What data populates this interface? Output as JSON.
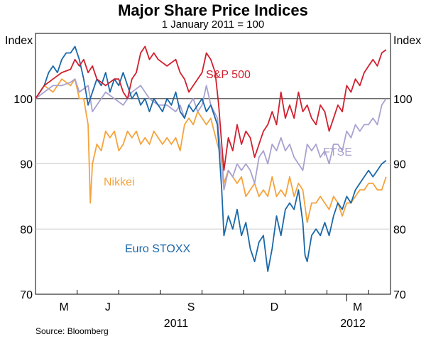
{
  "chart_data": {
    "type": "line",
    "title": "Major Share Price Indices",
    "subtitle": "1 January 2011 = 100",
    "ylabel_left": "Index",
    "ylabel_right": "Index",
    "ylim": [
      70,
      110
    ],
    "yticks": [
      70,
      80,
      90,
      100
    ],
    "reference_line": 100,
    "month_ticks": [
      "M",
      "J",
      "S",
      "D",
      "M"
    ],
    "year_labels": [
      "2011",
      "2012"
    ],
    "source": "Source: Bloomberg",
    "x_range_days": [
      0,
      81
    ],
    "series": [
      {
        "name": "S&P 500",
        "color": "#d0202e",
        "points": [
          [
            0,
            100
          ],
          [
            2,
            102
          ],
          [
            4,
            103
          ],
          [
            6,
            104
          ],
          [
            8,
            104.5
          ],
          [
            9,
            106
          ],
          [
            10,
            105
          ],
          [
            11,
            106
          ],
          [
            12,
            104
          ],
          [
            13,
            105
          ],
          [
            14,
            103
          ],
          [
            16,
            102
          ],
          [
            18,
            103
          ],
          [
            19,
            103
          ],
          [
            20,
            101
          ],
          [
            21,
            100
          ],
          [
            22,
            103
          ],
          [
            23,
            104
          ],
          [
            24,
            107
          ],
          [
            25,
            108
          ],
          [
            26,
            106
          ],
          [
            27,
            107
          ],
          [
            28,
            106
          ],
          [
            30,
            105
          ],
          [
            32,
            106
          ],
          [
            33,
            104
          ],
          [
            34,
            103
          ],
          [
            35,
            101
          ],
          [
            36,
            102
          ],
          [
            37,
            103
          ],
          [
            38,
            104
          ],
          [
            39,
            107
          ],
          [
            40,
            106
          ],
          [
            41,
            104
          ],
          [
            41.8,
            99
          ],
          [
            42.5,
            93
          ],
          [
            43,
            89
          ],
          [
            44,
            94
          ],
          [
            45,
            92
          ],
          [
            46,
            96
          ],
          [
            47,
            93
          ],
          [
            48,
            95
          ],
          [
            49,
            94
          ],
          [
            50,
            91
          ],
          [
            51,
            93
          ],
          [
            52,
            95
          ],
          [
            53,
            96
          ],
          [
            54,
            98
          ],
          [
            55,
            96
          ],
          [
            56,
            101
          ],
          [
            57,
            97
          ],
          [
            58,
            99
          ],
          [
            59,
            97
          ],
          [
            60,
            101
          ],
          [
            61,
            98
          ],
          [
            62,
            99
          ],
          [
            63,
            97
          ],
          [
            64,
            96
          ],
          [
            65,
            99
          ],
          [
            66,
            98
          ],
          [
            67,
            95
          ],
          [
            68,
            97
          ],
          [
            69,
            99
          ],
          [
            70,
            98
          ],
          [
            71,
            102
          ],
          [
            72,
            101
          ],
          [
            73,
            103
          ],
          [
            74,
            102
          ],
          [
            75,
            104
          ],
          [
            76,
            105
          ],
          [
            77,
            106
          ],
          [
            78,
            105
          ],
          [
            79,
            107
          ],
          [
            80,
            107.5
          ]
        ]
      },
      {
        "name": "FTSE",
        "color": "#a8a2d0",
        "points": [
          [
            0,
            100
          ],
          [
            2,
            101
          ],
          [
            4,
            102
          ],
          [
            6,
            102
          ],
          [
            8,
            102.5
          ],
          [
            9,
            103
          ],
          [
            10,
            101
          ],
          [
            12,
            102
          ],
          [
            13,
            98
          ],
          [
            14,
            99
          ],
          [
            16,
            101
          ],
          [
            18,
            100
          ],
          [
            20,
            99
          ],
          [
            22,
            101
          ],
          [
            24,
            102
          ],
          [
            26,
            100
          ],
          [
            28,
            99
          ],
          [
            30,
            99
          ],
          [
            32,
            98
          ],
          [
            33,
            99
          ],
          [
            34,
            97
          ],
          [
            35,
            99
          ],
          [
            36,
            100
          ],
          [
            37,
            98
          ],
          [
            38,
            99
          ],
          [
            39,
            102
          ],
          [
            40,
            99
          ],
          [
            41.5,
            97
          ],
          [
            42.5,
            90
          ],
          [
            43,
            86
          ],
          [
            44,
            89
          ],
          [
            45,
            88
          ],
          [
            46,
            90
          ],
          [
            47,
            89
          ],
          [
            48,
            90
          ],
          [
            49,
            89
          ],
          [
            50,
            87
          ],
          [
            51,
            91
          ],
          [
            52,
            92
          ],
          [
            53,
            90
          ],
          [
            54,
            93
          ],
          [
            55,
            92
          ],
          [
            56,
            94
          ],
          [
            57,
            92
          ],
          [
            58,
            93
          ],
          [
            59,
            91
          ],
          [
            60,
            90
          ],
          [
            61,
            89
          ],
          [
            62,
            93
          ],
          [
            63,
            92
          ],
          [
            64,
            93
          ],
          [
            65,
            91
          ],
          [
            66,
            92
          ],
          [
            67,
            90
          ],
          [
            68,
            93
          ],
          [
            69,
            93
          ],
          [
            70,
            92
          ],
          [
            71,
            95
          ],
          [
            72,
            94
          ],
          [
            73,
            96
          ],
          [
            74,
            95
          ],
          [
            75,
            96
          ],
          [
            76,
            96
          ],
          [
            77,
            97
          ],
          [
            78,
            96
          ],
          [
            79,
            99
          ],
          [
            80,
            100
          ]
        ]
      },
      {
        "name": "Nikkei",
        "color": "#f5a33c",
        "points": [
          [
            0,
            100
          ],
          [
            2,
            102
          ],
          [
            4,
            101
          ],
          [
            6,
            103
          ],
          [
            8,
            102
          ],
          [
            9,
            103
          ],
          [
            10,
            100
          ],
          [
            11,
            100
          ],
          [
            12,
            96
          ],
          [
            12.5,
            84
          ],
          [
            13,
            90
          ],
          [
            14,
            93
          ],
          [
            15,
            92
          ],
          [
            16,
            95
          ],
          [
            17,
            94
          ],
          [
            18,
            95
          ],
          [
            19,
            92
          ],
          [
            20,
            93
          ],
          [
            21,
            95
          ],
          [
            22,
            94
          ],
          [
            23,
            95
          ],
          [
            24,
            93
          ],
          [
            25,
            94
          ],
          [
            26,
            93
          ],
          [
            27,
            95
          ],
          [
            28,
            94
          ],
          [
            29,
            93
          ],
          [
            30,
            94
          ],
          [
            31,
            93
          ],
          [
            32,
            94
          ],
          [
            33,
            92
          ],
          [
            34,
            96
          ],
          [
            35,
            97
          ],
          [
            36,
            96
          ],
          [
            37,
            98
          ],
          [
            38,
            97
          ],
          [
            39,
            96
          ],
          [
            40,
            97
          ],
          [
            41.5,
            93
          ],
          [
            42.5,
            91
          ],
          [
            43,
            87
          ],
          [
            44,
            89
          ],
          [
            45,
            88
          ],
          [
            46,
            87
          ],
          [
            47,
            88
          ],
          [
            48,
            85
          ],
          [
            49,
            86
          ],
          [
            50,
            87
          ],
          [
            51,
            85
          ],
          [
            52,
            86
          ],
          [
            53,
            85
          ],
          [
            54,
            88
          ],
          [
            55,
            85
          ],
          [
            56,
            86
          ],
          [
            57,
            85
          ],
          [
            58,
            88
          ],
          [
            59,
            85
          ],
          [
            60,
            87
          ],
          [
            61,
            86
          ],
          [
            62,
            81
          ],
          [
            63,
            84
          ],
          [
            64,
            84
          ],
          [
            65,
            85
          ],
          [
            66,
            84
          ],
          [
            67,
            83
          ],
          [
            68,
            85
          ],
          [
            69,
            84
          ],
          [
            70,
            82
          ],
          [
            71,
            84
          ],
          [
            72,
            84
          ],
          [
            73,
            85
          ],
          [
            74,
            86
          ],
          [
            75,
            86
          ],
          [
            76,
            87
          ],
          [
            77,
            87
          ],
          [
            78,
            86
          ],
          [
            79,
            86
          ],
          [
            80,
            88
          ]
        ]
      },
      {
        "name": "Euro STOXX",
        "color": "#1a68a8",
        "points": [
          [
            0,
            100
          ],
          [
            2,
            102
          ],
          [
            3,
            104
          ],
          [
            4,
            105
          ],
          [
            5,
            104
          ],
          [
            6,
            106
          ],
          [
            7,
            107
          ],
          [
            8,
            107
          ],
          [
            9,
            108
          ],
          [
            10,
            106
          ],
          [
            11,
            103
          ],
          [
            12,
            99
          ],
          [
            13,
            101
          ],
          [
            14,
            103
          ],
          [
            15,
            102
          ],
          [
            16,
            104
          ],
          [
            17,
            101
          ],
          [
            18,
            103
          ],
          [
            19,
            102
          ],
          [
            20,
            104
          ],
          [
            21,
            102
          ],
          [
            22,
            100
          ],
          [
            23,
            101
          ],
          [
            24,
            99
          ],
          [
            25,
            100
          ],
          [
            26,
            98
          ],
          [
            27,
            100
          ],
          [
            28,
            99
          ],
          [
            29,
            98
          ],
          [
            30,
            100
          ],
          [
            31,
            99
          ],
          [
            32,
            101
          ],
          [
            33,
            98
          ],
          [
            34,
            97
          ],
          [
            35,
            99
          ],
          [
            36,
            98
          ],
          [
            37,
            99
          ],
          [
            38,
            100
          ],
          [
            39,
            98
          ],
          [
            40,
            99
          ],
          [
            41.5,
            96
          ],
          [
            42.5,
            86
          ],
          [
            43,
            79
          ],
          [
            44,
            82
          ],
          [
            45,
            80
          ],
          [
            46,
            83
          ],
          [
            47,
            79
          ],
          [
            48,
            81
          ],
          [
            49,
            77
          ],
          [
            50,
            75
          ],
          [
            51,
            78
          ],
          [
            52,
            79
          ],
          [
            53,
            73.5
          ],
          [
            54,
            77
          ],
          [
            55,
            82
          ],
          [
            56,
            79
          ],
          [
            57,
            83
          ],
          [
            58,
            84
          ],
          [
            59,
            83
          ],
          [
            60,
            86
          ],
          [
            61,
            81
          ],
          [
            61.5,
            76
          ],
          [
            62,
            75
          ],
          [
            63,
            79
          ],
          [
            64,
            80
          ],
          [
            65,
            79
          ],
          [
            66,
            81
          ],
          [
            67,
            79
          ],
          [
            68,
            82
          ],
          [
            69,
            84
          ],
          [
            70,
            83
          ],
          [
            71,
            85
          ],
          [
            72,
            84
          ],
          [
            73,
            86
          ],
          [
            74,
            87
          ],
          [
            75,
            88
          ],
          [
            76,
            89
          ],
          [
            77,
            88
          ],
          [
            78,
            89
          ],
          [
            79,
            90
          ],
          [
            80,
            90.5
          ]
        ]
      }
    ],
    "annotations": [
      {
        "text": "S&P 500",
        "series": "S&P 500"
      },
      {
        "text": "FTSE",
        "series": "FTSE"
      },
      {
        "text": "Nikkei",
        "series": "Nikkei"
      },
      {
        "text": "Euro STOXX",
        "series": "Euro STOXX"
      }
    ]
  }
}
